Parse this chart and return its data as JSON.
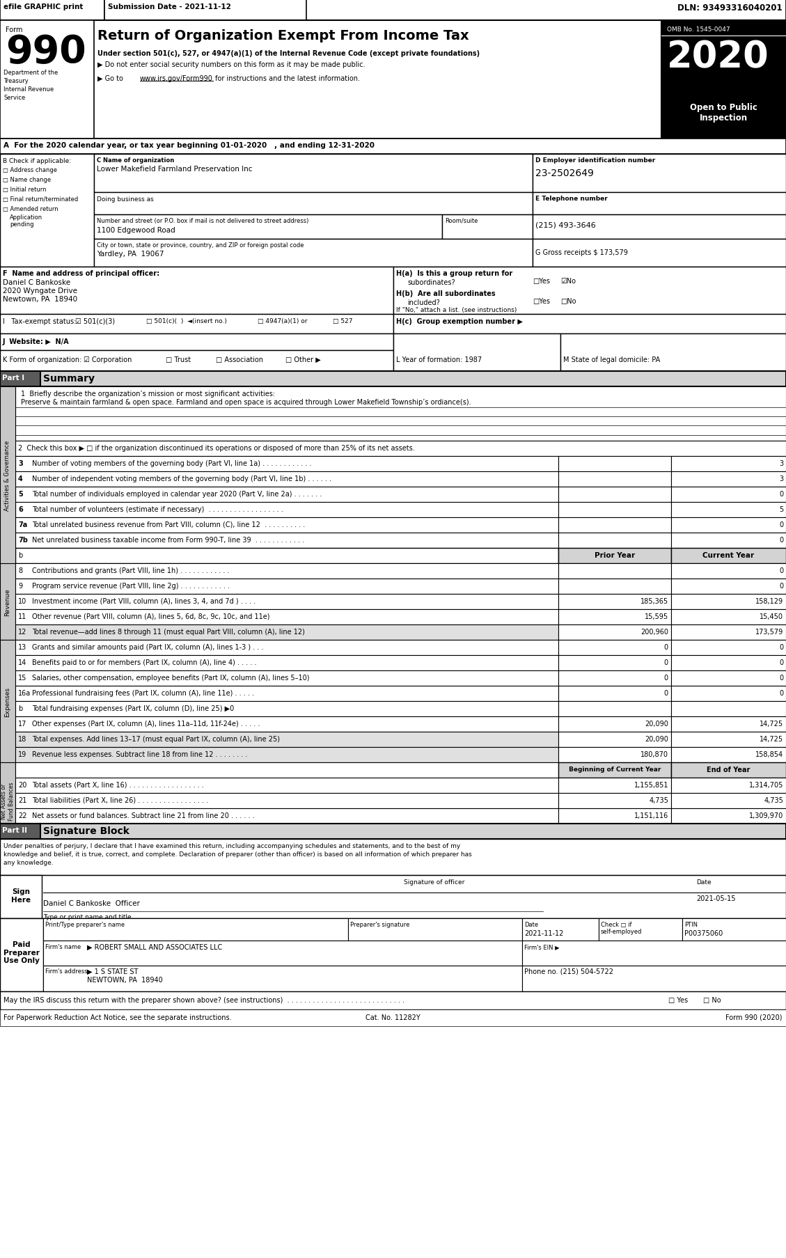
{
  "efile_header": "efile GRAPHIC print",
  "submission_date": "Submission Date - 2021-11-12",
  "dln": "DLN: 93493316040201",
  "omb": "OMB No. 1545-0047",
  "year": "2020",
  "open_to_public": "Open to Public\nInspection",
  "dept_line1": "Department of the",
  "dept_line2": "Treasury",
  "dept_line3": "Internal Revenue",
  "dept_line4": "Service",
  "title_main": "Return of Organization Exempt From Income Tax",
  "subtitle1": "Under section 501(c), 527, or 4947(a)(1) of the Internal Revenue Code (except private foundations)",
  "subtitle2": "▶ Do not enter social security numbers on this form as it may be made public.",
  "subtitle3_pre": "▶ Go to ",
  "subtitle3_url": "www.irs.gov/Form990",
  "subtitle3_post": " for instructions and the latest information.",
  "tax_year_line": "A  For the 2020 calendar year, or tax year beginning 01-01-2020   , and ending 12-31-2020",
  "check_if": "B Check if applicable:",
  "org_name_label": "C Name of organization",
  "org_name": "Lower Makefield Farmland Preservation Inc",
  "dba_label": "Doing business as",
  "street_label": "Number and street (or P.O. box if mail is not delivered to street address)",
  "room_label": "Room/suite",
  "street": "1100 Edgewood Road",
  "city_label": "City or town, state or province, country, and ZIP or foreign postal code",
  "city": "Yardley, PA  19067",
  "ein_label": "D Employer identification number",
  "ein": "23-2502649",
  "phone_label": "E Telephone number",
  "phone": "(215) 493-3646",
  "gross_label": "G Gross receipts $ 173,579",
  "principal_label": "F  Name and address of principal officer:",
  "principal_name": "Daniel C Bankoske",
  "principal_addr1": "2020 Wyngate Drive",
  "principal_addr2": "Newtown, PA  18940",
  "website_label": "J  Website: ▶  N/A",
  "year_formed_label": "L Year of formation: 1987",
  "state_label": "M State of legal domicile: PA",
  "mission_label": "1  Briefly describe the organization’s mission or most significant activities:",
  "mission_text": "Preserve & maintain farmland & open space. Farmland and open space is acquired through Lower Makefield Township’s ordiance(s).",
  "check2_label": "2  Check this box ▶ □ if the organization discontinued its operations or disposed of more than 25% of its net assets.",
  "sig_text_1": "Under penalties of perjury, I declare that I have examined this return, including accompanying schedules and statements, and to the best of my",
  "sig_text_2": "knowledge and belief, it is true, correct, and complete. Declaration of preparer (other than officer) is based on all information of which preparer has",
  "sig_text_3": "any knowledge.",
  "sig_date_label": "2021-05-15",
  "prep_date": "2021-11-12",
  "prep_ptin": "P00375060",
  "prep_firm": "▶ ROBERT SMALL AND ASSOCIATES LLC",
  "prep_addr": "▶ 1 S STATE ST",
  "prep_city": "NEWTOWN, PA  18940",
  "prep_phone_label": "Phone no. (215) 504-5722",
  "irs_discuss": "May the IRS discuss this return with the preparer shown above? (see instructions)  . . . . . . . . . . . . . . . . . . . . . . . . . . . .",
  "footer": "For Paperwork Reduction Act Notice, see the separate instructions.",
  "cat_no": "Cat. No. 11282Y",
  "form_footer": "Form 990 (2020)"
}
